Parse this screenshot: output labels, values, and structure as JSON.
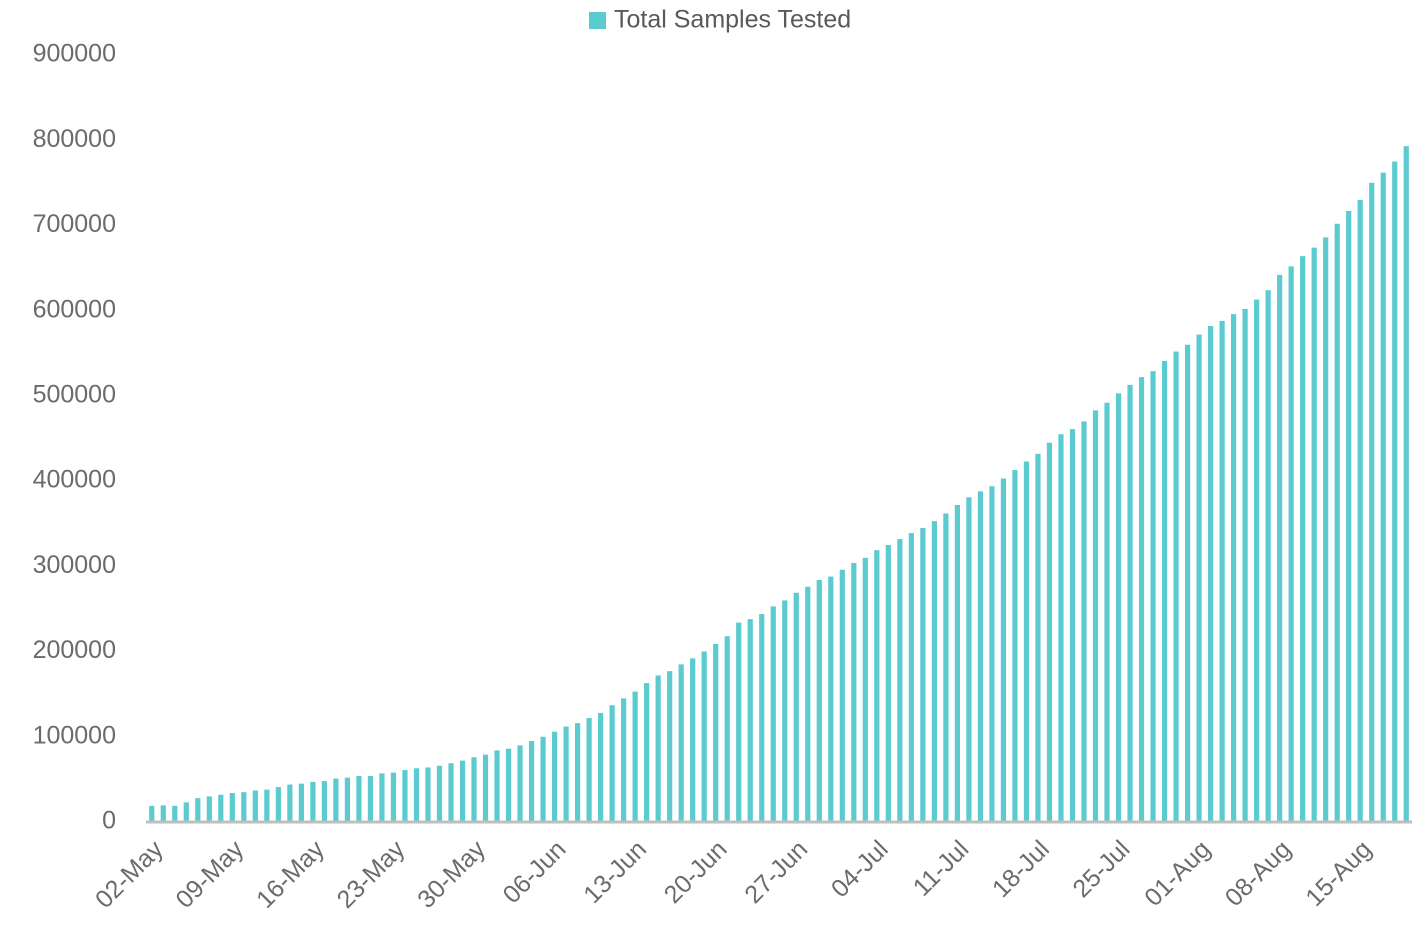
{
  "chart_data": {
    "type": "bar",
    "categories": [
      "02-May",
      null,
      null,
      null,
      null,
      null,
      null,
      "09-May",
      null,
      null,
      null,
      null,
      null,
      null,
      "16-May",
      null,
      null,
      null,
      null,
      null,
      null,
      "23-May",
      null,
      null,
      null,
      null,
      null,
      null,
      "30-May",
      null,
      null,
      null,
      null,
      null,
      null,
      "06-Jun",
      null,
      null,
      null,
      null,
      null,
      null,
      "13-Jun",
      null,
      null,
      null,
      null,
      null,
      null,
      "20-Jun",
      null,
      null,
      null,
      null,
      null,
      null,
      "27-Jun",
      null,
      null,
      null,
      null,
      null,
      null,
      "04-Jul",
      null,
      null,
      null,
      null,
      null,
      null,
      "11-Jul",
      null,
      null,
      null,
      null,
      null,
      null,
      "18-Jul",
      null,
      null,
      null,
      null,
      null,
      null,
      "25-Jul",
      null,
      null,
      null,
      null,
      null,
      null,
      "01-Aug",
      null,
      null,
      null,
      null,
      null,
      null,
      "08-Aug",
      null,
      null,
      null,
      null,
      null,
      null,
      "15-Aug",
      null,
      null,
      null,
      null
    ],
    "series": [
      {
        "name": "Total Samples Tested",
        "color": "#5ccbd0",
        "values": [
          19000,
          19500,
          19000,
          23000,
          28000,
          30000,
          32000,
          34000,
          35000,
          37000,
          38000,
          41000,
          44000,
          45000,
          47000,
          48000,
          51000,
          52000,
          54000,
          54000,
          57000,
          58000,
          61000,
          63000,
          64000,
          66000,
          69000,
          72000,
          76000,
          79000,
          84000,
          86000,
          90000,
          95000,
          100000,
          106000,
          112000,
          116000,
          122000,
          128000,
          137000,
          145000,
          153000,
          163000,
          172000,
          177000,
          185000,
          192000,
          200000,
          209000,
          218000,
          234000,
          238000,
          244000,
          253000,
          260000,
          269000,
          276000,
          284000,
          288000,
          296000,
          304000,
          310000,
          319000,
          325000,
          332000,
          339000,
          345000,
          353000,
          362000,
          372000,
          381000,
          388000,
          394000,
          403000,
          413000,
          423000,
          432000,
          445000,
          455000,
          461000,
          470000,
          483000,
          492000,
          503000,
          513000,
          522000,
          529000,
          541000,
          552000,
          560000,
          572000,
          582000,
          588000,
          596000,
          602000,
          613000,
          624000,
          642000,
          652000,
          664000,
          674000,
          686000,
          702000,
          717000,
          730000,
          750000,
          762000,
          775000,
          793000
        ]
      }
    ],
    "ylim": [
      0,
      900000
    ],
    "yticks": [
      0,
      100000,
      200000,
      300000,
      400000,
      500000,
      600000,
      700000,
      800000,
      900000
    ],
    "legend": "top"
  }
}
